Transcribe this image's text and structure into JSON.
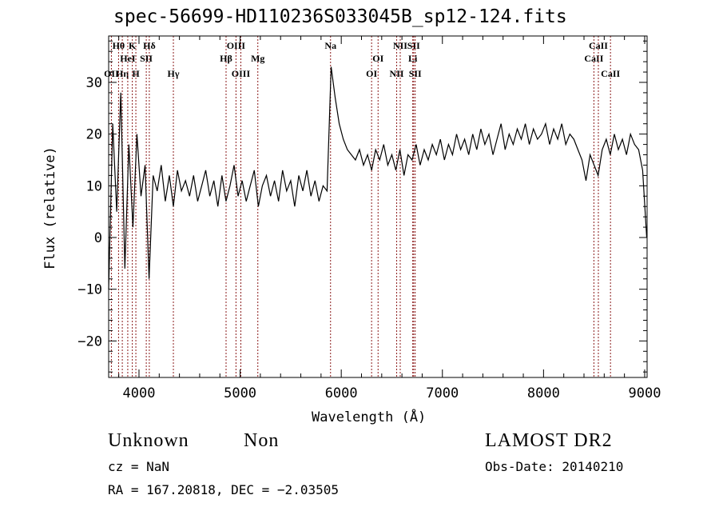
{
  "chart_data": {
    "type": "line",
    "title": "spec-56699-HD110236S033045B_sp12-124.fits",
    "xlabel": "Wavelength (Å)",
    "ylabel": "Flux (relative)",
    "xlim": [
      3700,
      9024
    ],
    "ylim": [
      -27.06,
      38.97
    ],
    "x_ticks": [
      4000,
      5000,
      6000,
      7000,
      8000,
      9000
    ],
    "x_tick_labels": [
      "4000",
      "5000",
      "6000",
      "7000",
      "8000",
      "9000"
    ],
    "y_ticks": [
      -20,
      -10,
      0,
      10,
      20,
      30
    ],
    "y_tick_labels": [
      "−20",
      "−10",
      "0",
      "10",
      "20",
      "30"
    ],
    "grid": false,
    "series": [
      {
        "name": "spectrum",
        "color": "#000000",
        "x_start": 3700,
        "x_step": 40,
        "values": [
          -10,
          22,
          5,
          28,
          -6,
          18,
          2,
          20,
          8,
          14,
          -8,
          12,
          9,
          14,
          7,
          12,
          6,
          13,
          9,
          11,
          8,
          12,
          7,
          10,
          13,
          8,
          11,
          6,
          12,
          7,
          10,
          14,
          8,
          11,
          7,
          10,
          13,
          6,
          10,
          12,
          8,
          11,
          7,
          13,
          9,
          11,
          6,
          12,
          9,
          13,
          8,
          11,
          7,
          10,
          9,
          33,
          27,
          22,
          19,
          17,
          16,
          15,
          17,
          14,
          16,
          13,
          17,
          15,
          18,
          14,
          16,
          13,
          17,
          12,
          16,
          15,
          18,
          14,
          17,
          15,
          18,
          16,
          19,
          15,
          18,
          16,
          20,
          17,
          19,
          16,
          20,
          17,
          21,
          18,
          20,
          16,
          19,
          22,
          17,
          20,
          18,
          21,
          19,
          22,
          18,
          21,
          19,
          20,
          22,
          18,
          21,
          19,
          22,
          18,
          20,
          19,
          17,
          15,
          11,
          16,
          14,
          12,
          17,
          19,
          16,
          20,
          17,
          19,
          16,
          20,
          18,
          17,
          13,
          0
        ]
      }
    ],
    "line_color": "#8b1a1a",
    "spectral_lines": [
      {
        "label": "OII",
        "wavelength": 3727
      },
      {
        "label": "Hθ",
        "wavelength": 3798
      },
      {
        "label": "Hη",
        "wavelength": 3835
      },
      {
        "label": "HeI",
        "wavelength": 3889
      },
      {
        "label": "K",
        "wavelength": 3934
      },
      {
        "label": "H",
        "wavelength": 3969
      },
      {
        "label": "SII",
        "wavelength": 4072
      },
      {
        "label": "Hδ",
        "wavelength": 4102
      },
      {
        "label": "Hγ",
        "wavelength": 4340
      },
      {
        "label": "Hβ",
        "wavelength": 4861
      },
      {
        "label": "OIII",
        "wavelength": 4959
      },
      {
        "label": "OIII",
        "wavelength": 5007
      },
      {
        "label": "Mg",
        "wavelength": 5175
      },
      {
        "label": "Na",
        "wavelength": 5894
      },
      {
        "label": "OI",
        "wavelength": 6300
      },
      {
        "label": "OI",
        "wavelength": 6364
      },
      {
        "label": "NII",
        "wavelength": 6548
      },
      {
        "label": "NII",
        "wavelength": 6583
      },
      {
        "label": "Li",
        "wavelength": 6707
      },
      {
        "label": "SII",
        "wavelength": 6716
      },
      {
        "label": "SII",
        "wavelength": 6731
      },
      {
        "label": "CaII",
        "wavelength": 8498
      },
      {
        "label": "CaII",
        "wavelength": 8542
      },
      {
        "label": "CaII",
        "wavelength": 8662
      }
    ]
  },
  "info": {
    "class": "Unknown",
    "subclass": "Non",
    "survey": "LAMOST DR2",
    "cz": "cz = NaN",
    "obs_date": "Obs-Date: 20140210",
    "coords": "RA = 167.20818, DEC =  −2.03505"
  }
}
